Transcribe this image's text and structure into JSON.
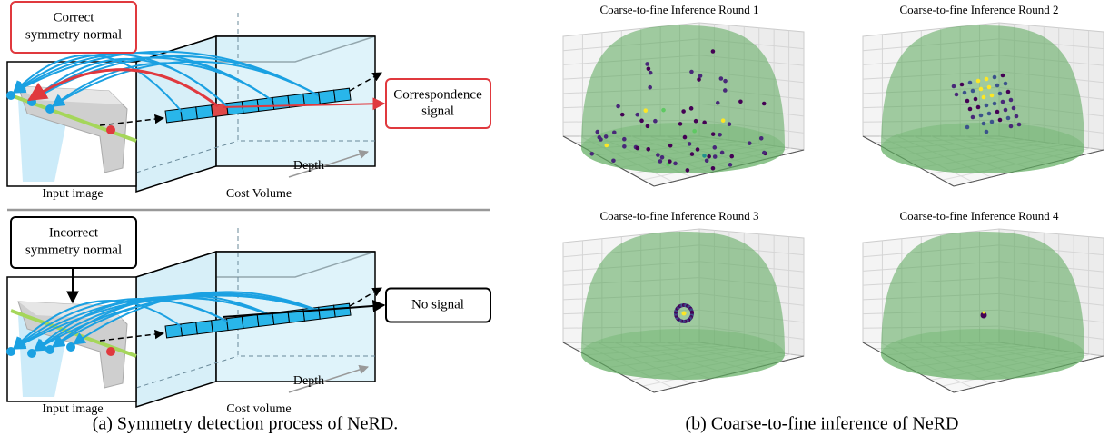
{
  "panel_a": {
    "rows": [
      {
        "box_label": [
          "Correct",
          "symmetry normal"
        ],
        "signal_label": [
          "Correspondence",
          "signal"
        ],
        "depth": "Depth",
        "input_label": "Input image",
        "volume_label": "Cost Volume"
      },
      {
        "box_label": [
          "Incorrect",
          "symmetry normal"
        ],
        "signal_label": [
          "No signal"
        ],
        "depth": "Depth",
        "input_label": "Input image",
        "volume_label": "Cost volume"
      }
    ],
    "caption": "(a) Symmetry detection process of NeRD."
  },
  "panel_b": {
    "rounds": [
      "Coarse-to-fine Inference Round 1",
      "Coarse-to-fine Inference Round 2",
      "Coarse-to-fine Inference Round 3",
      "Coarse-to-fine Inference Round 4"
    ],
    "caption": "(b) Coarse-to-fine inference of NeRD"
  }
}
